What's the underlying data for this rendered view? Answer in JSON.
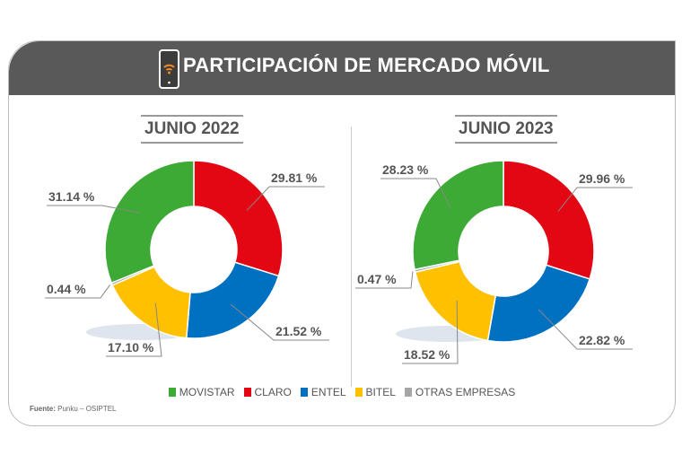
{
  "title": "PARTICIPACIÓN DE MERCADO MÓVIL",
  "icon": "smartphone-wifi-icon",
  "source_label": "Fuente:",
  "source": "Punku – OSIPTEL",
  "chart_data": [
    {
      "type": "pie",
      "title": "JUNIO 2022",
      "categories": [
        "CLARO",
        "ENTEL",
        "BITEL",
        "OTRAS EMPRESAS",
        "MOVISTAR"
      ],
      "values": [
        29.81,
        21.52,
        17.1,
        0.44,
        31.14
      ],
      "labels": [
        "29.81 %",
        "21.52 %",
        "17.10 %",
        "0.44 %",
        "31.14 %"
      ]
    },
    {
      "type": "pie",
      "title": "JUNIO 2023",
      "categories": [
        "CLARO",
        "ENTEL",
        "BITEL",
        "OTRAS EMPRESAS",
        "MOVISTAR"
      ],
      "values": [
        29.96,
        22.82,
        18.52,
        0.47,
        28.23
      ],
      "labels": [
        "29.96 %",
        "22.82 %",
        "18.52 %",
        "0.47 %",
        "28.23 %"
      ]
    }
  ],
  "legend": [
    {
      "name": "MOVISTAR",
      "color": "#3daa35"
    },
    {
      "name": "CLARO",
      "color": "#e30613"
    },
    {
      "name": "ENTEL",
      "color": "#0070c0"
    },
    {
      "name": "BITEL",
      "color": "#ffc000"
    },
    {
      "name": "OTRAS EMPRESAS",
      "color": "#a6a6a6"
    }
  ],
  "colors": {
    "CLARO": "#e30613",
    "ENTEL": "#0070c0",
    "BITEL": "#ffc000",
    "OTRAS EMPRESAS": "#a6a6a6",
    "MOVISTAR": "#3daa35"
  }
}
